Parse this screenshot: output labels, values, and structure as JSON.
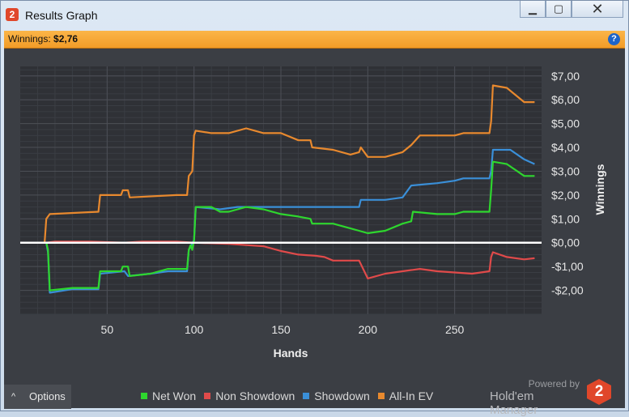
{
  "window": {
    "title": "Results Graph",
    "app_icon": "2",
    "buttons": {
      "minimize": "▁",
      "maximize": "▢",
      "close": "✕"
    }
  },
  "winnings_bar": {
    "label": "Winnings:",
    "value": "$2,76",
    "help_icon": "?"
  },
  "options": {
    "label": "Options",
    "icon": "chevron-up-icon"
  },
  "powered_by": {
    "line1": "Powered by",
    "line2": "Hold'em Manager",
    "logo": "2"
  },
  "chart_data": {
    "type": "line",
    "xlabel": "Hands",
    "ylabel": "Winnings",
    "xlim": [
      0,
      300
    ],
    "ylim": [
      -3,
      7.4
    ],
    "x_ticks": [
      50,
      100,
      150,
      200,
      250
    ],
    "y_ticks": [
      {
        "v": 7,
        "label": "$7,00"
      },
      {
        "v": 6,
        "label": "$6,00"
      },
      {
        "v": 5,
        "label": "$5,00"
      },
      {
        "v": 4,
        "label": "$4,00"
      },
      {
        "v": 3,
        "label": "$3,00"
      },
      {
        "v": 2,
        "label": "$2,00"
      },
      {
        "v": 1,
        "label": "$1,00"
      },
      {
        "v": 0,
        "label": "$0,00"
      },
      {
        "v": -1,
        "label": "-$1,00"
      },
      {
        "v": -2,
        "label": "-$2,00"
      }
    ],
    "grid": true,
    "legend_position": "bottom",
    "series": [
      {
        "name": "Net Won",
        "color": "#2ed62e",
        "points": [
          [
            0,
            0
          ],
          [
            15,
            0
          ],
          [
            16,
            -0.3
          ],
          [
            17,
            -2
          ],
          [
            30,
            -1.9
          ],
          [
            45,
            -1.9
          ],
          [
            46,
            -1.2
          ],
          [
            58,
            -1.2
          ],
          [
            59,
            -1.0
          ],
          [
            62,
            -1.0
          ],
          [
            63,
            -1.4
          ],
          [
            75,
            -1.3
          ],
          [
            85,
            -1.1
          ],
          [
            96,
            -1.1
          ],
          [
            97,
            -0.3
          ],
          [
            98,
            -0.1
          ],
          [
            99,
            -0.3
          ],
          [
            100,
            0.1
          ],
          [
            101,
            1.5
          ],
          [
            110,
            1.5
          ],
          [
            115,
            1.3
          ],
          [
            120,
            1.3
          ],
          [
            130,
            1.5
          ],
          [
            140,
            1.4
          ],
          [
            150,
            1.2
          ],
          [
            160,
            1.1
          ],
          [
            167,
            1.0
          ],
          [
            168,
            0.8
          ],
          [
            180,
            0.8
          ],
          [
            190,
            0.6
          ],
          [
            195,
            0.5
          ],
          [
            200,
            0.4
          ],
          [
            210,
            0.5
          ],
          [
            220,
            0.8
          ],
          [
            225,
            0.9
          ],
          [
            226,
            1.3
          ],
          [
            240,
            1.2
          ],
          [
            250,
            1.2
          ],
          [
            255,
            1.3
          ],
          [
            270,
            1.3
          ],
          [
            271,
            2.2
          ],
          [
            272,
            3.4
          ],
          [
            280,
            3.3
          ],
          [
            290,
            2.8
          ],
          [
            296,
            2.8
          ]
        ]
      },
      {
        "name": "Non Showdown",
        "color": "#e04a4a",
        "points": [
          [
            0,
            0
          ],
          [
            15,
            0
          ],
          [
            20,
            0.05
          ],
          [
            40,
            0.05
          ],
          [
            60,
            0
          ],
          [
            70,
            0.05
          ],
          [
            90,
            0.05
          ],
          [
            100,
            0
          ],
          [
            120,
            -0.05
          ],
          [
            140,
            -0.15
          ],
          [
            150,
            -0.35
          ],
          [
            160,
            -0.5
          ],
          [
            170,
            -0.55
          ],
          [
            175,
            -0.6
          ],
          [
            180,
            -0.75
          ],
          [
            195,
            -0.75
          ],
          [
            200,
            -1.5
          ],
          [
            210,
            -1.3
          ],
          [
            220,
            -1.2
          ],
          [
            230,
            -1.1
          ],
          [
            240,
            -1.2
          ],
          [
            260,
            -1.3
          ],
          [
            270,
            -1.2
          ],
          [
            271,
            -0.6
          ],
          [
            272,
            -0.4
          ],
          [
            280,
            -0.6
          ],
          [
            290,
            -0.7
          ],
          [
            296,
            -0.65
          ]
        ]
      },
      {
        "name": "Showdown",
        "color": "#3a8fd8",
        "points": [
          [
            0,
            0
          ],
          [
            15,
            0
          ],
          [
            16,
            -0.4
          ],
          [
            17,
            -2.1
          ],
          [
            30,
            -1.95
          ],
          [
            45,
            -1.95
          ],
          [
            46,
            -1.3
          ],
          [
            60,
            -1.2
          ],
          [
            62,
            -1.4
          ],
          [
            75,
            -1.3
          ],
          [
            85,
            -1.2
          ],
          [
            96,
            -1.2
          ],
          [
            97,
            -0.3
          ],
          [
            100,
            0.1
          ],
          [
            101,
            1.5
          ],
          [
            115,
            1.4
          ],
          [
            125,
            1.5
          ],
          [
            150,
            1.5
          ],
          [
            175,
            1.5
          ],
          [
            195,
            1.5
          ],
          [
            196,
            1.8
          ],
          [
            210,
            1.8
          ],
          [
            220,
            1.9
          ],
          [
            225,
            2.4
          ],
          [
            240,
            2.5
          ],
          [
            250,
            2.6
          ],
          [
            255,
            2.7
          ],
          [
            270,
            2.7
          ],
          [
            271,
            3.0
          ],
          [
            272,
            3.9
          ],
          [
            282,
            3.9
          ],
          [
            290,
            3.5
          ],
          [
            296,
            3.3
          ]
        ]
      },
      {
        "name": "All-In EV",
        "color": "#e8892e",
        "points": [
          [
            0,
            0
          ],
          [
            14,
            0
          ],
          [
            15,
            1.0
          ],
          [
            16,
            1.1
          ],
          [
            17,
            1.2
          ],
          [
            45,
            1.3
          ],
          [
            46,
            2.0
          ],
          [
            58,
            2.0
          ],
          [
            59,
            2.2
          ],
          [
            62,
            2.2
          ],
          [
            63,
            1.9
          ],
          [
            90,
            2.0
          ],
          [
            96,
            2.0
          ],
          [
            97,
            2.8
          ],
          [
            99,
            3.0
          ],
          [
            100,
            4.5
          ],
          [
            101,
            4.7
          ],
          [
            110,
            4.6
          ],
          [
            120,
            4.6
          ],
          [
            130,
            4.8
          ],
          [
            140,
            4.6
          ],
          [
            150,
            4.6
          ],
          [
            160,
            4.3
          ],
          [
            167,
            4.3
          ],
          [
            168,
            4.0
          ],
          [
            180,
            3.9
          ],
          [
            190,
            3.7
          ],
          [
            195,
            3.8
          ],
          [
            196,
            4.0
          ],
          [
            200,
            3.6
          ],
          [
            210,
            3.6
          ],
          [
            220,
            3.8
          ],
          [
            225,
            4.1
          ],
          [
            230,
            4.5
          ],
          [
            250,
            4.5
          ],
          [
            255,
            4.6
          ],
          [
            270,
            4.6
          ],
          [
            271,
            5.1
          ],
          [
            272,
            6.6
          ],
          [
            280,
            6.5
          ],
          [
            290,
            5.9
          ],
          [
            296,
            5.9
          ]
        ]
      }
    ]
  }
}
